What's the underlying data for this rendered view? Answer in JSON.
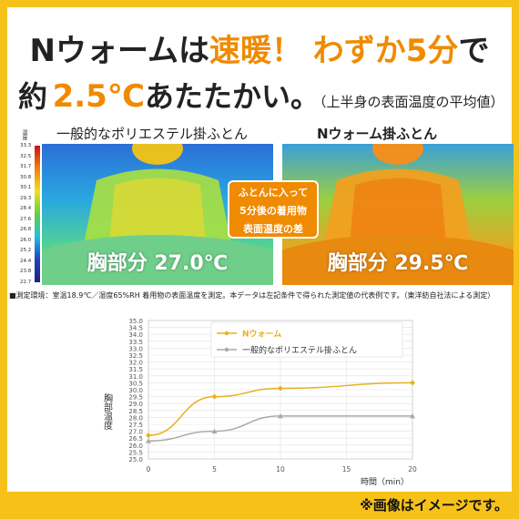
{
  "headline": {
    "line1_a": "Nウォームは",
    "line1_b": "速暖！",
    "line1_c": "わずか5分",
    "line1_d": "で",
    "line2_a": "約",
    "line2_b": "2.5℃",
    "line2_c": "あたたかい。",
    "line2_note": "（上半身の表面温度の平均値）"
  },
  "comparison": {
    "left_caption": "一般的なポリエステル掛ふとん",
    "right_caption": "Nウォーム掛ふとん",
    "left_temp": "胸部分 27.0℃",
    "right_temp": "胸部分 29.5℃",
    "middle_box": [
      "ふとんに入って",
      "5分後の着用物",
      "表面温度の差"
    ]
  },
  "scale": {
    "title": "温度",
    "ticks": [
      "33.3",
      "32.5",
      "31.7",
      "30.8",
      "30.1",
      "29.3",
      "28.4",
      "27.6",
      "26.8",
      "26.0",
      "25.2",
      "24.4",
      "23.8",
      "22.7"
    ],
    "colors": {
      "hot": "#d01010",
      "cold": "#202080"
    }
  },
  "measurement_note": "■測定環境：室温18.9℃／湿度65%RH 着用物の表面温度を測定。本データは左記条件で得られた測定値の代表例です。（東洋紡自社法による測定）",
  "chart_data": {
    "type": "line",
    "x": [
      0,
      5,
      10,
      20
    ],
    "series": [
      {
        "name": "Nウォーム",
        "color": "#e8b020",
        "values": [
          26.7,
          29.5,
          30.1,
          30.5
        ]
      },
      {
        "name": "一般的なポリエステル掛ふとん",
        "color": "#aaaaaa",
        "values": [
          26.3,
          27.0,
          28.1,
          28.1
        ]
      }
    ],
    "xlabel": "時間（min）",
    "ylabel": "胸部温度",
    "xticks": [
      "0",
      "5",
      "10",
      "15",
      "20"
    ],
    "yticks": [
      "25.0",
      "25.5",
      "26.0",
      "26.5",
      "27.0",
      "27.5",
      "28.0",
      "28.5",
      "29.0",
      "29.5",
      "30.0",
      "30.5",
      "31.0",
      "31.5",
      "32.0",
      "32.5",
      "33.0",
      "33.5",
      "34.0",
      "34.5",
      "35.0"
    ],
    "xlim": [
      0,
      20
    ],
    "ylim": [
      25,
      35
    ],
    "grid": true,
    "legend": "top-right"
  },
  "footer_note": "※画像はイメージです。"
}
